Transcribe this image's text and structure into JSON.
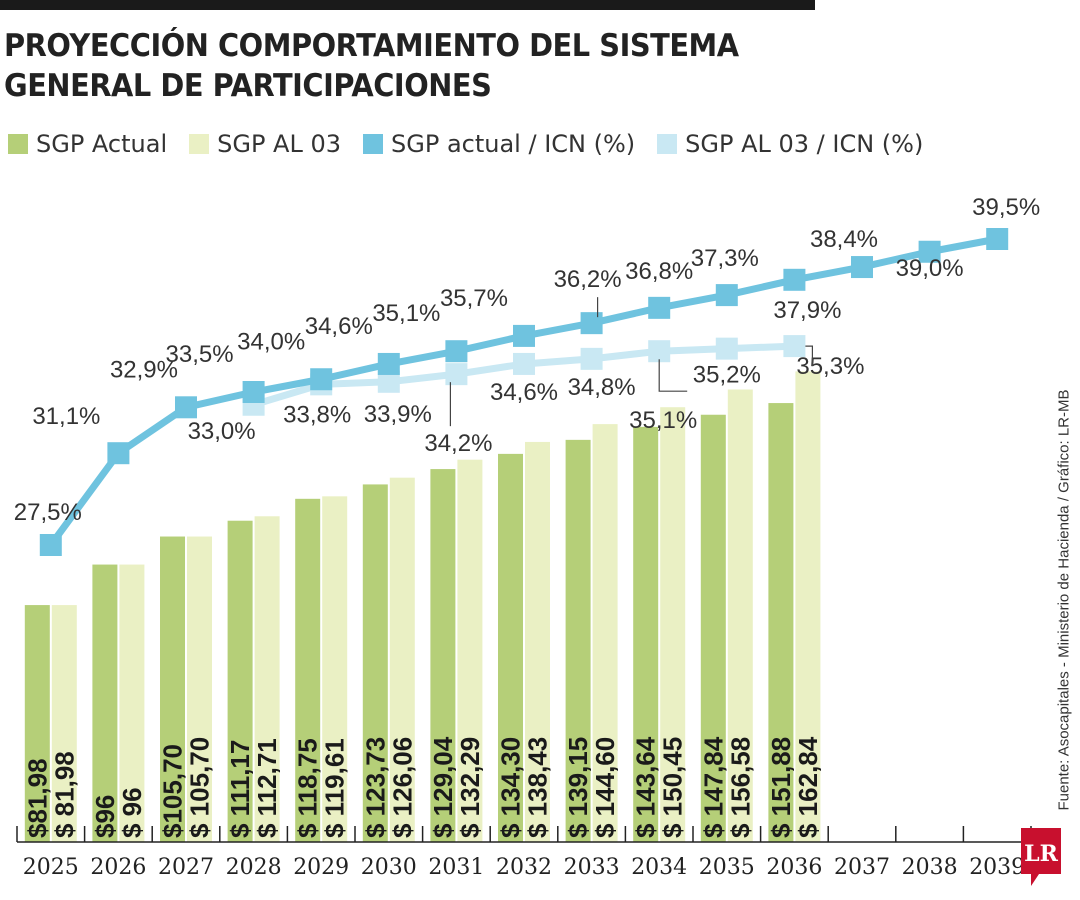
{
  "title_lines": [
    "PROYECCIÓN COMPORTAMIENTO DEL SISTEMA",
    "GENERAL DE PARTICIPACIONES"
  ],
  "legend": [
    {
      "label": "SGP Actual",
      "color": "#b5cf78"
    },
    {
      "label": "SGP AL 03",
      "color": "#eaf0c4"
    },
    {
      "label": "SGP actual / ICN (%)",
      "color": "#6fc3df"
    },
    {
      "label": "SGP AL 03 / ICN (%)",
      "color": "#c9e8f3"
    }
  ],
  "source": "Fuente: Asocapitales - Ministerio de Hacienda / Gráfico: LR-MB",
  "logo_text": "LR",
  "chart_data": {
    "type": "bar",
    "categories": [
      "2025",
      "2026",
      "2027",
      "2028",
      "2029",
      "2030",
      "2031",
      "2032",
      "2033",
      "2034",
      "2035",
      "2036",
      "2037",
      "2038",
      "2039"
    ],
    "colors": {
      "bar_actual": "#b5cf78",
      "bar_al03": "#eaf0c4",
      "line_actual": "#6fc3df",
      "line_al03": "#c9e8f3"
    },
    "series": [
      {
        "name": "SGP Actual",
        "kind": "bar",
        "values": [
          81.98,
          96,
          105.7,
          111.17,
          118.75,
          123.73,
          129.04,
          134.3,
          139.15,
          143.64,
          147.84,
          151.88,
          null,
          null,
          null
        ],
        "labels": [
          "$81,98",
          "$96",
          "$105,70",
          "$ 111,17",
          "$ 118,75",
          "$ 123,73",
          "$ 129,04",
          "$ 134,30",
          "$ 139,15",
          "$ 143,64",
          "$ 147,84",
          "$ 151,88",
          "",
          "",
          ""
        ]
      },
      {
        "name": "SGP AL 03",
        "kind": "bar",
        "values": [
          81.98,
          96,
          105.7,
          112.71,
          119.61,
          126.06,
          132.29,
          138.43,
          144.6,
          150.45,
          156.58,
          162.84,
          null,
          null,
          null
        ],
        "labels": [
          "$ 81,98",
          "$ 96",
          "$ 105,70",
          "$ 112,71",
          "$ 119,61",
          "$ 126,06",
          "$ 132,29",
          "$ 138,43",
          "$ 144,60",
          "$ 150,45",
          "$ 156,58",
          "$ 162,84",
          "",
          "",
          ""
        ]
      },
      {
        "name": "SGP actual / ICN (%)",
        "kind": "line",
        "values": [
          27.5,
          31.1,
          32.9,
          33.5,
          34.0,
          34.6,
          35.1,
          35.7,
          36.2,
          36.8,
          37.3,
          37.9,
          38.4,
          39.0,
          39.5
        ],
        "labels": [
          "27,5%",
          "31,1%",
          "32,9%",
          "33,5%",
          "34,0%",
          "34,6%",
          "35,1%",
          "35,7%",
          "36,2%",
          "36,8%",
          "37,3%",
          "37,9%",
          "38,4%",
          "39,0%",
          "39,5%"
        ]
      },
      {
        "name": "SGP AL 03 / ICN (%)",
        "kind": "line",
        "values": [
          null,
          null,
          null,
          33.0,
          33.8,
          33.9,
          34.2,
          34.6,
          34.8,
          35.1,
          35.2,
          35.3,
          null,
          null,
          null
        ],
        "labels": [
          "",
          "",
          "",
          "33,0%",
          "33,8%",
          "33,9%",
          "34,2%",
          "34,6%",
          "34,8%",
          "35,1%",
          "35,2%",
          "35,3%",
          "",
          "",
          ""
        ]
      }
    ]
  }
}
